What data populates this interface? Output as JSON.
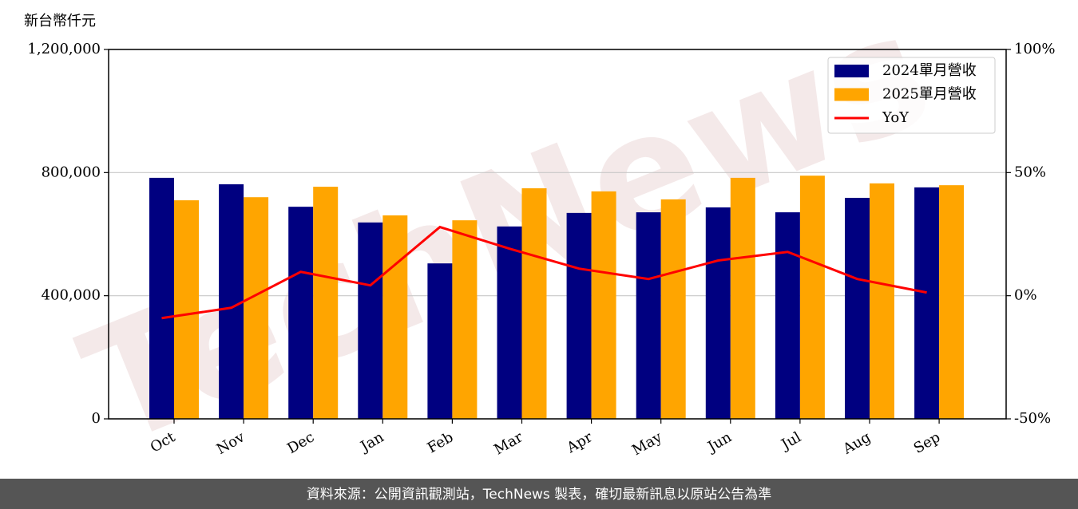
{
  "chart_data": {
    "type": "bar",
    "y_label": "新台幣仟元",
    "categories": [
      "Oct",
      "Nov",
      "Dec",
      "Jan",
      "Feb",
      "Mar",
      "Apr",
      "May",
      "Jun",
      "Jul",
      "Aug",
      "Sep"
    ],
    "series": [
      {
        "name": "2024單月營收",
        "color": "#000080",
        "values": [
          783000,
          762000,
          689000,
          638000,
          505000,
          625000,
          669000,
          671000,
          687000,
          671000,
          718000,
          752000
        ]
      },
      {
        "name": "2025單月營收",
        "color": "#ffa500",
        "values": [
          710000,
          720000,
          754000,
          661000,
          645000,
          749000,
          739000,
          713000,
          783000,
          790000,
          765000,
          759000
        ]
      },
      {
        "name": "YoY",
        "color": "#ff0000",
        "type": "line",
        "axis": "y2",
        "values": [
          -9.1,
          -4.9,
          9.7,
          4.2,
          27.9,
          19.1,
          11.0,
          6.8,
          14.3,
          17.8,
          6.8,
          1.3
        ]
      }
    ],
    "ylim": [
      0,
      1200000
    ],
    "yticks": [
      0,
      {
        "value": 400000,
        "label": "400,000"
      },
      {
        "value": 800000,
        "label": "800,000"
      },
      {
        "value": 1200000,
        "label": "1,200,000"
      }
    ],
    "y2lim": [
      -50,
      100
    ],
    "y2ticks": [
      {
        "value": -50,
        "label": "-50%"
      },
      {
        "value": 0,
        "label": "0%"
      },
      {
        "value": 50,
        "label": "50%"
      },
      {
        "value": 100,
        "label": "100%"
      }
    ],
    "grid": true,
    "legend": "upper right",
    "watermark": "TechNews",
    "footer": "資料來源：公開資訊觀測站，TechNews 製表，確切最新訊息以原站公告為準"
  }
}
